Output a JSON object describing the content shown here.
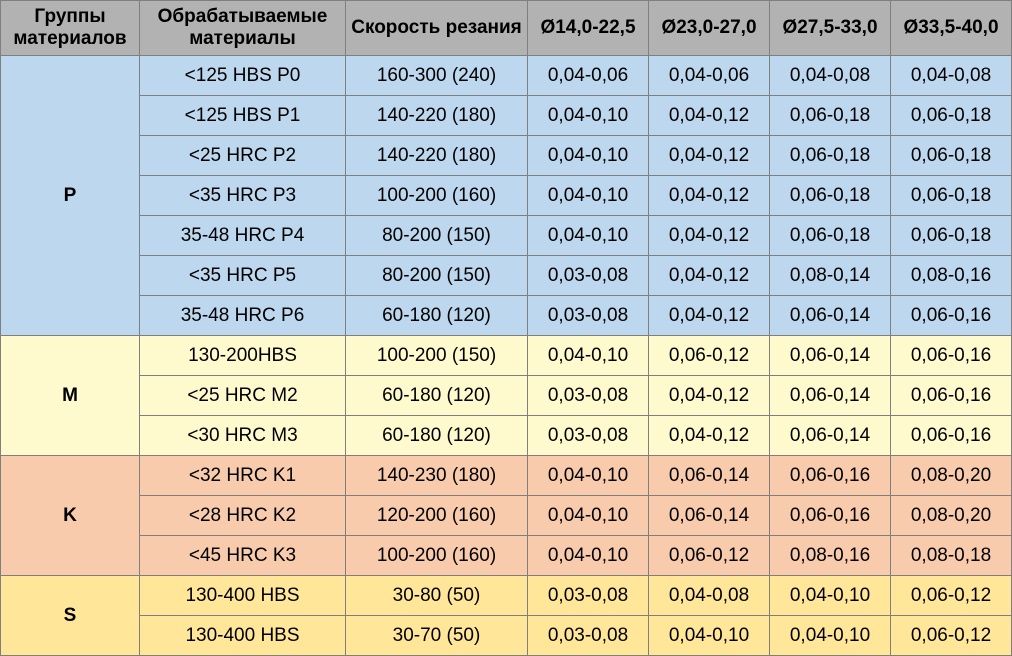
{
  "headers": [
    "Группы материалов",
    "Обрабатываемые материалы",
    "Скорость резания",
    "Ø14,0-22,5",
    "Ø23,0-27,0",
    "Ø27,5-33,0",
    "Ø33,5-40,0"
  ],
  "colors": {
    "header": "#b2b2b2",
    "P": "#bdd7ee",
    "M": "#fffacd",
    "K": "#f7cbac",
    "S": "#ffe699",
    "border": "#7f7f7f"
  },
  "groups": [
    {
      "name": "P",
      "rows": [
        {
          "material": "<125 HBS P0",
          "speed": "160-300 (240)",
          "f1": "0,04-0,06",
          "f2": "0,04-0,06",
          "f3": "0,04-0,08",
          "f4": "0,04-0,08"
        },
        {
          "material": "<125 HBS P1",
          "speed": "140-220 (180)",
          "f1": "0,04-0,10",
          "f2": "0,04-0,12",
          "f3": "0,06-0,18",
          "f4": "0,06-0,18"
        },
        {
          "material": "<25 HRC P2",
          "speed": "140-220 (180)",
          "f1": "0,04-0,10",
          "f2": "0,04-0,12",
          "f3": "0,06-0,18",
          "f4": "0,06-0,18"
        },
        {
          "material": "<35 HRC P3",
          "speed": "100-200 (160)",
          "f1": "0,04-0,10",
          "f2": "0,04-0,12",
          "f3": "0,06-0,18",
          "f4": "0,06-0,18"
        },
        {
          "material": "35-48 HRC P4",
          "speed": "80-200 (150)",
          "f1": "0,04-0,10",
          "f2": "0,04-0,12",
          "f3": "0,06-0,18",
          "f4": "0,06-0,18"
        },
        {
          "material": "<35 HRC P5",
          "speed": "80-200 (150)",
          "f1": "0,03-0,08",
          "f2": "0,04-0,12",
          "f3": "0,08-0,14",
          "f4": "0,08-0,16"
        },
        {
          "material": "35-48 HRC P6",
          "speed": "60-180 (120)",
          "f1": "0,03-0,08",
          "f2": "0,04-0,12",
          "f3": "0,06-0,14",
          "f4": "0,06-0,16"
        }
      ]
    },
    {
      "name": "M",
      "rows": [
        {
          "material": "130-200HBS",
          "speed": "100-200 (150)",
          "f1": "0,04-0,10",
          "f2": "0,06-0,12",
          "f3": "0,06-0,14",
          "f4": "0,06-0,16"
        },
        {
          "material": "<25 HRC M2",
          "speed": "60-180 (120)",
          "f1": "0,03-0,08",
          "f2": "0,04-0,12",
          "f3": "0,06-0,14",
          "f4": "0,06-0,16"
        },
        {
          "material": "<30 HRC M3",
          "speed": "60-180 (120)",
          "f1": "0,03-0,08",
          "f2": "0,04-0,12",
          "f3": "0,06-0,14",
          "f4": "0,06-0,16"
        }
      ]
    },
    {
      "name": "K",
      "rows": [
        {
          "material": "<32 HRC K1",
          "speed": "140-230 (180)",
          "f1": "0,04-0,10",
          "f2": "0,06-0,14",
          "f3": "0,06-0,16",
          "f4": "0,08-0,20"
        },
        {
          "material": "<28 HRC K2",
          "speed": "120-200 (160)",
          "f1": "0,04-0,10",
          "f2": "0,06-0,14",
          "f3": "0,06-0,16",
          "f4": "0,08-0,20"
        },
        {
          "material": "<45 HRC K3",
          "speed": "100-200 (160)",
          "f1": "0,04-0,10",
          "f2": "0,06-0,12",
          "f3": "0,08-0,16",
          "f4": "0,08-0,18"
        }
      ]
    },
    {
      "name": "S",
      "rows": [
        {
          "material": "130-400 HBS",
          "speed": "30-80 (50)",
          "f1": "0,03-0,08",
          "f2": "0,04-0,08",
          "f3": "0,04-0,10",
          "f4": "0,06-0,12"
        },
        {
          "material": "130-400 HBS",
          "speed": "30-70 (50)",
          "f1": "0,03-0,08",
          "f2": "0,04-0,10",
          "f3": "0,04-0,10",
          "f4": "0,06-0,12"
        }
      ]
    }
  ]
}
